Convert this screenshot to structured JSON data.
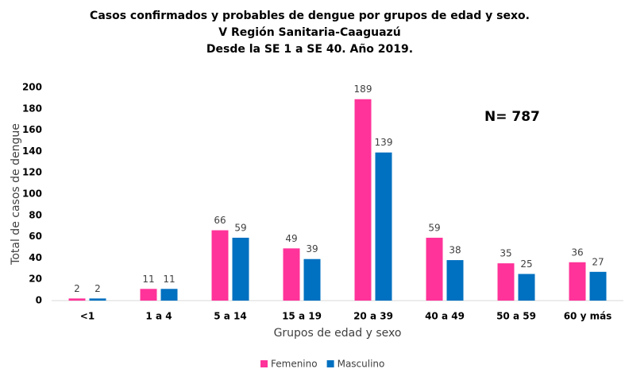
{
  "chart_data": {
    "type": "bar",
    "title": [
      "Casos confirmados y probables de dengue por grupos de edad y sexo.",
      "V Región Sanitaria-Caaguazú",
      "Desde la SE 1 a SE 40. Año 2019."
    ],
    "annotation": "N= 787",
    "x_label": "Grupos de edad y sexo",
    "y_label": "Total de casos de dengue",
    "categories": [
      "<1",
      "1 a 4",
      "5 a 14",
      "15 a 19",
      "20 a 39",
      "40 a 49",
      "50 a 59",
      "60 y más"
    ],
    "series": [
      {
        "name": "Femenino",
        "color": "#ff3399",
        "values": [
          2,
          11,
          66,
          49,
          189,
          59,
          35,
          36
        ]
      },
      {
        "name": "Masculino",
        "color": "#0070c0",
        "values": [
          2,
          11,
          59,
          39,
          139,
          38,
          25,
          27
        ]
      }
    ],
    "ylim": [
      0,
      200
    ],
    "yticks": [
      0,
      20,
      40,
      60,
      80,
      100,
      120,
      140,
      160,
      180,
      200
    ],
    "grid": false,
    "legend": "bottom"
  }
}
